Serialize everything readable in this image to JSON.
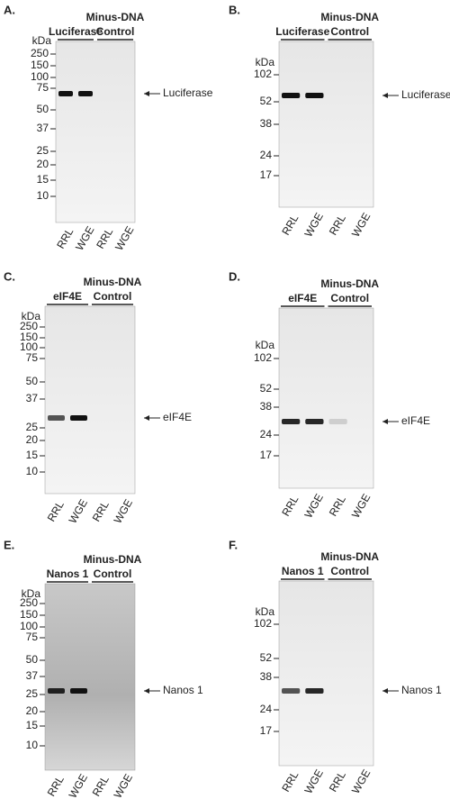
{
  "panels": [
    {
      "label": "A.",
      "header": "Minus-DNA",
      "groups": [
        "Luciferase",
        "Control"
      ],
      "unit": "kDa",
      "markers": [
        "250",
        "150",
        "100",
        "75",
        "50",
        "37",
        "25",
        "20",
        "15",
        "10"
      ],
      "target": "Luciferase",
      "lanes": [
        "RRL",
        "WGE",
        "RRL",
        "WGE"
      ]
    },
    {
      "label": "B.",
      "header": "Minus-DNA",
      "groups": [
        "Luciferase",
        "Control"
      ],
      "unit": "kDa",
      "markers": [
        "102",
        "52",
        "38",
        "24",
        "17"
      ],
      "target": "Luciferase",
      "lanes": [
        "RRL",
        "WGE",
        "RRL",
        "WGE"
      ]
    },
    {
      "label": "C.",
      "header": "Minus-DNA",
      "groups": [
        "eIF4E",
        "Control"
      ],
      "unit": "kDa",
      "markers": [
        "250",
        "150",
        "100",
        "75",
        "50",
        "37",
        "25",
        "20",
        "15",
        "10"
      ],
      "target": "eIF4E",
      "lanes": [
        "RRL",
        "WGE",
        "RRL",
        "WGE"
      ]
    },
    {
      "label": "D.",
      "header": "Minus-DNA",
      "groups": [
        "eIF4E",
        "Control"
      ],
      "unit": "kDa",
      "markers": [
        "102",
        "52",
        "38",
        "24",
        "17"
      ],
      "target": "eIF4E",
      "lanes": [
        "RRL",
        "WGE",
        "RRL",
        "WGE"
      ]
    },
    {
      "label": "E.",
      "header": "Minus-DNA",
      "groups": [
        "Nanos 1",
        "Control"
      ],
      "unit": "kDa",
      "markers": [
        "250",
        "150",
        "100",
        "75",
        "50",
        "37",
        "25",
        "20",
        "15",
        "10"
      ],
      "target": "Nanos 1",
      "lanes": [
        "RRL",
        "WGE",
        "RRL",
        "WGE"
      ]
    },
    {
      "label": "F.",
      "header": "Minus-DNA",
      "groups": [
        "Nanos 1",
        "Control"
      ],
      "unit": "kDa",
      "markers": [
        "102",
        "52",
        "38",
        "24",
        "17"
      ],
      "target": "Nanos 1",
      "lanes": [
        "RRL",
        "WGE",
        "RRL",
        "WGE"
      ]
    }
  ]
}
